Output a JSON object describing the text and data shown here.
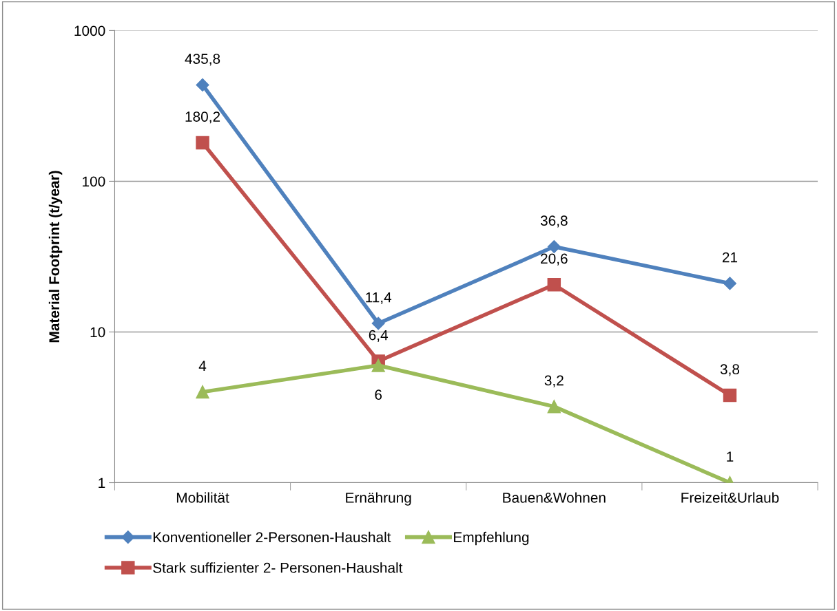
{
  "chart_data": {
    "type": "line",
    "ylabel": "Material Footprint (t/year)",
    "categories": [
      "Mobilität",
      "Ernährung",
      "Bauen&Wohnen",
      "Freizeit&Urlaub"
    ],
    "series": [
      {
        "name": "Konventioneller 2-Personen-Haushalt",
        "color": "#4f81bd",
        "marker": "diamond",
        "values": [
          435.8,
          11.4,
          36.8,
          21
        ],
        "value_labels": [
          "435,8",
          "11,4",
          "36,8",
          "21"
        ]
      },
      {
        "name": "Stark suffizienter 2- Personen-Haushalt",
        "color": "#c0504d",
        "marker": "square",
        "values": [
          180.2,
          6.4,
          20.6,
          3.8
        ],
        "value_labels": [
          "180,2",
          "6,4",
          "20,6",
          "3,8"
        ]
      },
      {
        "name": "Empfehlung",
        "color": "#9bbb59",
        "marker": "triangle",
        "values": [
          4,
          6,
          3.2,
          1
        ],
        "value_labels": [
          "4",
          "6",
          "3,2",
          "1"
        ]
      }
    ],
    "log": "y",
    "ylim": [
      1,
      1000
    ],
    "yticks": [
      1,
      10,
      100,
      1000
    ],
    "grid": "y",
    "legend": "bottom",
    "line_style": "solid"
  }
}
